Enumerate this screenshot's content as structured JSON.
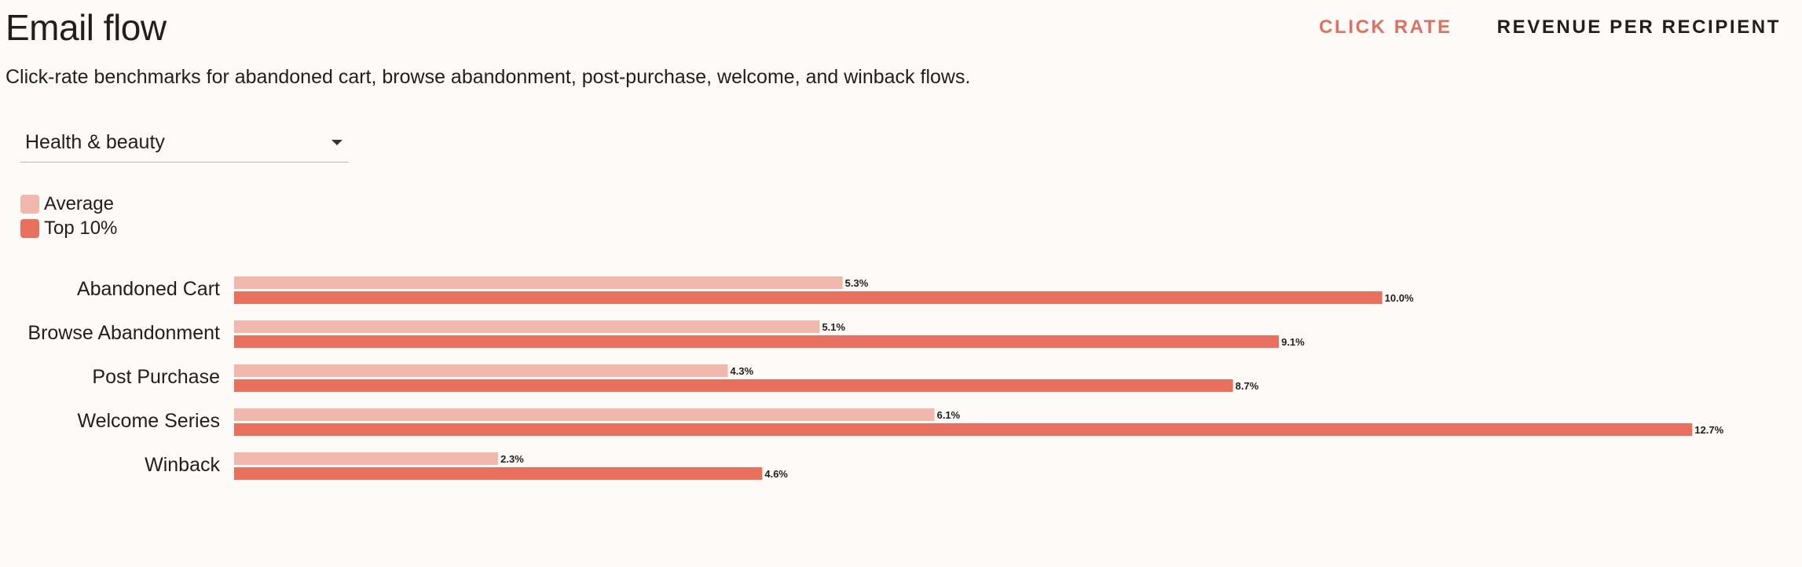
{
  "header": {
    "title": "Email flow",
    "subtitle": "Click-rate benchmarks for abandoned cart, browse abandonment, post-purchase, welcome, and winback flows."
  },
  "tabs": [
    {
      "label": "CLICK RATE",
      "active": true
    },
    {
      "label": "REVENUE PER RECIPIENT",
      "active": false
    }
  ],
  "filter": {
    "selected": "Health & beauty",
    "icon": "caret-down-icon"
  },
  "legend": {
    "items": [
      {
        "label": "Average",
        "color": "#f3b8ad"
      },
      {
        "label": "Top 10%",
        "color": "#e9705e"
      }
    ]
  },
  "chart_data": {
    "type": "bar",
    "orientation": "horizontal",
    "categories": [
      "Abandoned Cart",
      "Browse Abandonment",
      "Post Purchase",
      "Welcome Series",
      "Winback"
    ],
    "series": [
      {
        "name": "Average",
        "values": [
          5.3,
          5.1,
          4.3,
          6.1,
          2.3
        ],
        "labels": [
          "5.3%",
          "5.1%",
          "4.3%",
          "6.1%",
          "2.3%"
        ],
        "color": "#f3b8ad"
      },
      {
        "name": "Top 10%",
        "values": [
          10.0,
          9.1,
          8.7,
          12.7,
          4.6
        ],
        "labels": [
          "10.0%",
          "9.1%",
          "8.7%",
          "12.7%",
          "4.6%"
        ],
        "color": "#e9705e"
      }
    ],
    "xlim": [
      0,
      13.3
    ],
    "grid": false,
    "legend_position": "top-left"
  }
}
